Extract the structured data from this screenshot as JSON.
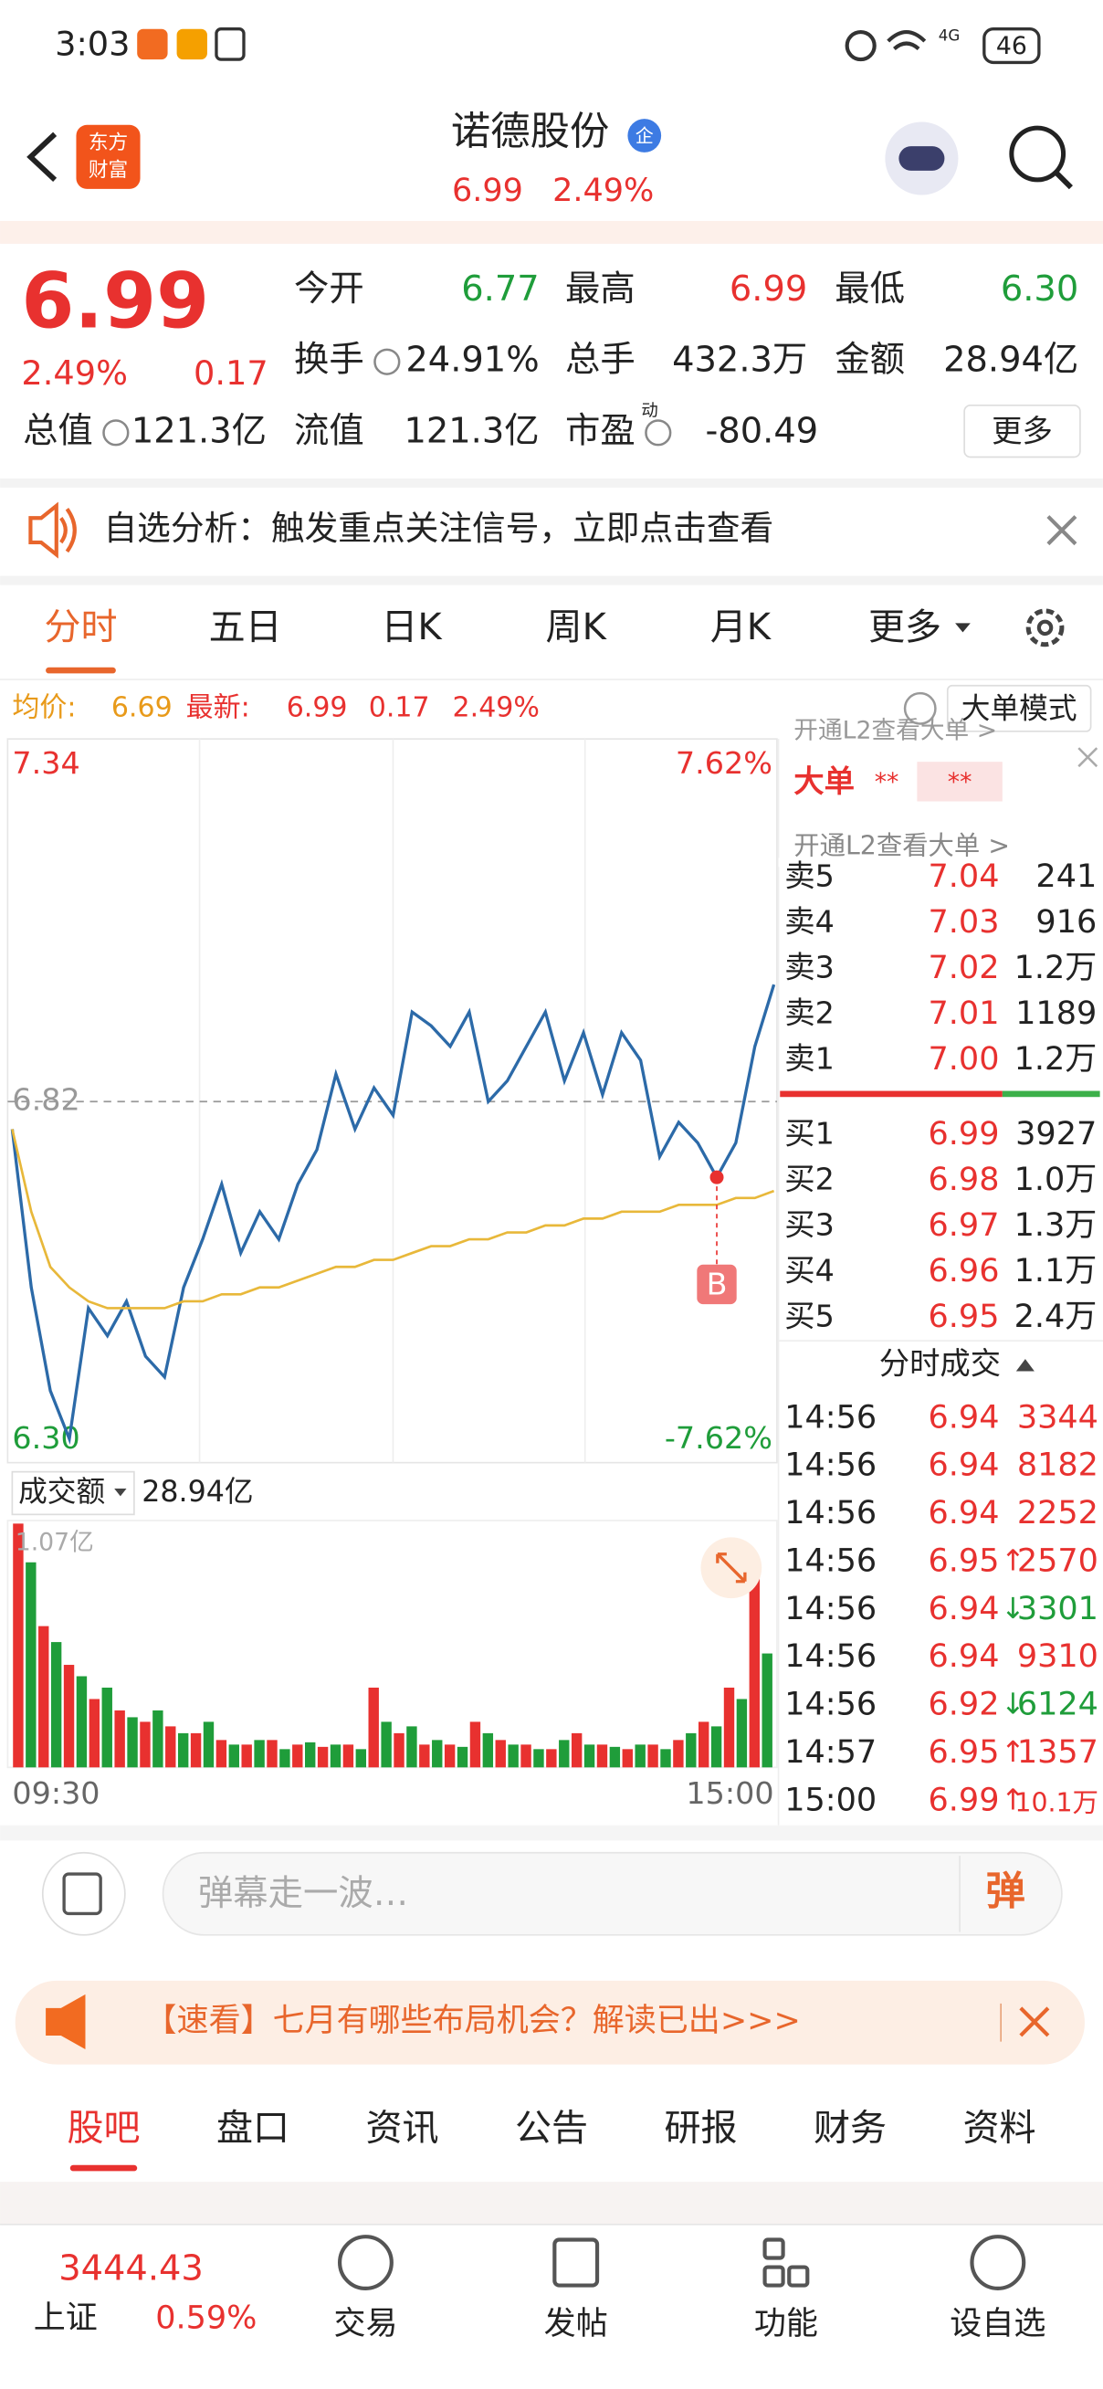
{
  "status": {
    "time": "3:03",
    "net": "4G",
    "battery": "46"
  },
  "header": {
    "title": "诺德股份",
    "badge": "企",
    "logo": [
      "东方",
      "财富"
    ],
    "price": "6.99",
    "change_pct": "2.49%"
  },
  "quote": {
    "price": "6.99",
    "change_pct": "2.49%",
    "change": "0.17",
    "fields": [
      {
        "label": "今开",
        "value": "6.77",
        "color": "#1f9d3a"
      },
      {
        "label": "最高",
        "value": "6.99",
        "color": "#e8312f"
      },
      {
        "label": "最低",
        "value": "6.30",
        "color": "#1f9d3a"
      },
      {
        "label": "换手",
        "value": "24.91%",
        "color": "#222"
      },
      {
        "label": "总手",
        "value": "432.3万",
        "color": "#222"
      },
      {
        "label": "金额",
        "value": "28.94亿",
        "color": "#222"
      },
      {
        "label": "总值",
        "value": "121.3亿",
        "color": "#222"
      },
      {
        "label": "流值",
        "value": "121.3亿",
        "color": "#222"
      },
      {
        "label": "市盈",
        "sup": "动",
        "value": "-80.49",
        "color": "#222"
      }
    ],
    "more": "更多"
  },
  "notice": {
    "text": "自选分析：触发重点关注信号，立即点击查看"
  },
  "tabs": [
    "分时",
    "五日",
    "日K",
    "周K",
    "月K",
    "更多"
  ],
  "info": {
    "avg_label": "均价:",
    "avg": "6.69",
    "latest_label": "最新:",
    "latest": "6.99",
    "change": "0.17",
    "change_pct": "2.49%",
    "mode": "大单模式"
  },
  "intraday": {
    "type": "line",
    "ylim": [
      6.3,
      7.34
    ],
    "labels": {
      "high": "7.34",
      "mid": "6.82",
      "low": "6.30",
      "high_pct": "7.62%",
      "low_pct": "-7.62%"
    },
    "series": [
      {
        "color": "#2c6aa8",
        "values": [
          6.78,
          6.55,
          6.4,
          6.33,
          6.52,
          6.48,
          6.53,
          6.45,
          6.42,
          6.55,
          6.62,
          6.7,
          6.6,
          6.66,
          6.62,
          6.7,
          6.75,
          6.86,
          6.78,
          6.84,
          6.8,
          6.95,
          6.93,
          6.9,
          6.95,
          6.82,
          6.85,
          6.9,
          6.95,
          6.85,
          6.92,
          6.83,
          6.92,
          6.88,
          6.74,
          6.79,
          6.76,
          6.71,
          6.76,
          6.9,
          6.99
        ]
      },
      {
        "color": "#e8b83a",
        "values": [
          6.78,
          6.66,
          6.58,
          6.55,
          6.53,
          6.52,
          6.52,
          6.52,
          6.52,
          6.53,
          6.53,
          6.54,
          6.54,
          6.55,
          6.55,
          6.56,
          6.57,
          6.58,
          6.58,
          6.59,
          6.59,
          6.6,
          6.61,
          6.61,
          6.62,
          6.62,
          6.63,
          6.63,
          6.64,
          6.64,
          6.65,
          6.65,
          6.66,
          6.66,
          6.66,
          6.67,
          6.67,
          6.67,
          6.68,
          6.68,
          6.69
        ]
      }
    ],
    "marker": "B",
    "xlabels": [
      "09:30",
      "15:00"
    ],
    "volume": {
      "label": "成交额",
      "total": "28.94亿",
      "max_label": "1.07亿",
      "ylim": [
        0,
        1.07
      ],
      "series": [
        {
          "color": "#e8312f",
          "values": [
            1.07,
            0.62,
            0.45,
            0.3,
            0.25,
            0.2,
            0.18,
            0.15,
            0.12,
            0.1,
            0.12,
            0.1,
            0.09,
            0.1,
            0.35,
            0.15,
            0.1,
            0.1,
            0.2,
            0.12,
            0.1,
            0.08,
            0.15,
            0.1,
            0.08,
            0.1,
            0.12,
            0.2,
            0.35,
            0.85
          ]
        },
        {
          "color": "#1f9d3a",
          "values": [
            0.9,
            0.55,
            0.4,
            0.35,
            0.22,
            0.25,
            0.15,
            0.2,
            0.1,
            0.12,
            0.08,
            0.11,
            0.1,
            0.08,
            0.2,
            0.18,
            0.12,
            0.09,
            0.15,
            0.1,
            0.08,
            0.12,
            0.1,
            0.09,
            0.1,
            0.08,
            0.15,
            0.18,
            0.3,
            0.5
          ]
        }
      ]
    }
  },
  "side": {
    "big": "大单",
    "big_a": "**",
    "big_b": "**",
    "l2": "开通L2查看大单 >",
    "sells": [
      {
        "label": "卖5",
        "price": "7.04",
        "vol": "241"
      },
      {
        "label": "卖4",
        "price": "7.03",
        "vol": "916"
      },
      {
        "label": "卖3",
        "price": "7.02",
        "vol": "1.2万"
      },
      {
        "label": "卖2",
        "price": "7.01",
        "vol": "1189"
      },
      {
        "label": "卖1",
        "price": "7.00",
        "vol": "1.2万"
      }
    ],
    "buys": [
      {
        "label": "买1",
        "price": "6.99",
        "vol": "3927"
      },
      {
        "label": "买2",
        "price": "6.98",
        "vol": "1.0万"
      },
      {
        "label": "买3",
        "price": "6.97",
        "vol": "1.3万"
      },
      {
        "label": "买4",
        "price": "6.96",
        "vol": "1.1万"
      },
      {
        "label": "买5",
        "price": "6.95",
        "vol": "2.4万"
      }
    ],
    "trades_title": "分时成交",
    "trades": [
      {
        "time": "14:56",
        "price": "6.94",
        "dir": "",
        "vol": "3344",
        "color": "#e8312f"
      },
      {
        "time": "14:56",
        "price": "6.94",
        "dir": "",
        "vol": "8182",
        "color": "#e8312f"
      },
      {
        "time": "14:56",
        "price": "6.94",
        "dir": "",
        "vol": "2252",
        "color": "#e8312f"
      },
      {
        "time": "14:56",
        "price": "6.95",
        "dir": "↑",
        "vol": "2570",
        "color": "#e8312f"
      },
      {
        "time": "14:56",
        "price": "6.94",
        "dir": "↓",
        "vol": "3301",
        "color": "#1f9d3a"
      },
      {
        "time": "14:56",
        "price": "6.94",
        "dir": "",
        "vol": "9310",
        "color": "#e8312f"
      },
      {
        "time": "14:56",
        "price": "6.92",
        "dir": "↓",
        "vol": "6124",
        "color": "#1f9d3a"
      },
      {
        "time": "14:57",
        "price": "6.95",
        "dir": "↑",
        "vol": "1357",
        "color": "#e8312f"
      },
      {
        "time": "15:00",
        "price": "6.99",
        "dir": "↑",
        "vol": "10.1万",
        "color": "#e8312f"
      }
    ]
  },
  "comment": {
    "placeholder": "弹幕走一波…",
    "button": "弹"
  },
  "banner": {
    "text": "【速看】七月有哪些布局机会？解读已出>>>"
  },
  "tabs2": [
    "股吧",
    "盘口",
    "资讯",
    "公告",
    "研报",
    "财务",
    "资料"
  ],
  "nav": {
    "index": "3444.43",
    "index_name": "上证",
    "index_pct": "0.59%",
    "items": [
      "交易",
      "发帖",
      "功能",
      "设自选"
    ]
  }
}
